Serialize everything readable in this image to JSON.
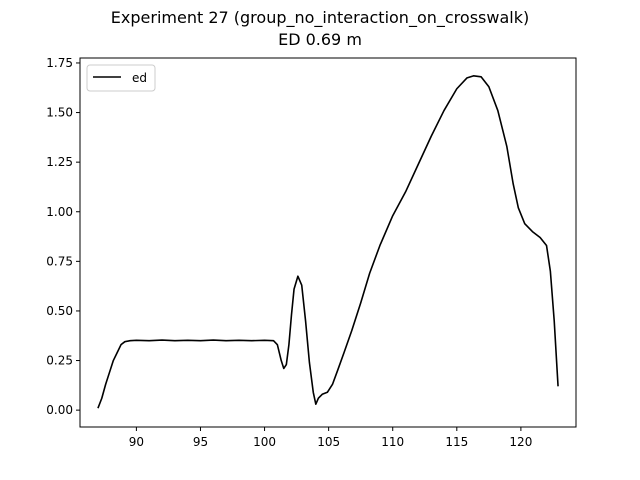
{
  "chart_data": {
    "type": "line",
    "title": "Experiment 27 (group_no_interaction_on_crosswalk)",
    "subtitle": "ED 0.69 m",
    "xlabel": "",
    "ylabel": "",
    "xlim": [
      85.6,
      124.3
    ],
    "ylim": [
      -0.085,
      1.775
    ],
    "xticks": [
      90,
      95,
      100,
      105,
      110,
      115,
      120
    ],
    "xtick_labels": [
      "90",
      "95",
      "100",
      "105",
      "110",
      "115",
      "120"
    ],
    "yticks": [
      0.0,
      0.25,
      0.5,
      0.75,
      1.0,
      1.25,
      1.5,
      1.75
    ],
    "ytick_labels": [
      "0.00",
      "0.25",
      "0.50",
      "0.75",
      "1.00",
      "1.25",
      "1.50",
      "1.75"
    ],
    "grid": false,
    "legend": {
      "position": "top-left",
      "entries": [
        "ed"
      ]
    },
    "series": [
      {
        "name": "ed",
        "color": "#000000",
        "points": [
          [
            87.0,
            0.01
          ],
          [
            87.3,
            0.06
          ],
          [
            87.6,
            0.13
          ],
          [
            87.9,
            0.19
          ],
          [
            88.2,
            0.25
          ],
          [
            88.5,
            0.29
          ],
          [
            88.8,
            0.33
          ],
          [
            89.1,
            0.345
          ],
          [
            89.5,
            0.35
          ],
          [
            90.0,
            0.352
          ],
          [
            91.0,
            0.35
          ],
          [
            92.0,
            0.353
          ],
          [
            93.0,
            0.35
          ],
          [
            94.0,
            0.352
          ],
          [
            95.0,
            0.35
          ],
          [
            96.0,
            0.353
          ],
          [
            97.0,
            0.35
          ],
          [
            98.0,
            0.352
          ],
          [
            99.0,
            0.35
          ],
          [
            100.0,
            0.352
          ],
          [
            100.7,
            0.35
          ],
          [
            101.0,
            0.33
          ],
          [
            101.3,
            0.25
          ],
          [
            101.5,
            0.21
          ],
          [
            101.7,
            0.23
          ],
          [
            101.9,
            0.33
          ],
          [
            102.1,
            0.48
          ],
          [
            102.3,
            0.61
          ],
          [
            102.6,
            0.675
          ],
          [
            102.9,
            0.63
          ],
          [
            103.2,
            0.45
          ],
          [
            103.5,
            0.24
          ],
          [
            103.8,
            0.09
          ],
          [
            104.0,
            0.03
          ],
          [
            104.2,
            0.06
          ],
          [
            104.5,
            0.08
          ],
          [
            104.9,
            0.09
          ],
          [
            105.3,
            0.13
          ],
          [
            105.7,
            0.2
          ],
          [
            106.2,
            0.29
          ],
          [
            106.8,
            0.4
          ],
          [
            107.5,
            0.54
          ],
          [
            108.2,
            0.69
          ],
          [
            109.0,
            0.83
          ],
          [
            110.0,
            0.98
          ],
          [
            111.0,
            1.1
          ],
          [
            112.0,
            1.24
          ],
          [
            113.0,
            1.38
          ],
          [
            114.0,
            1.51
          ],
          [
            115.0,
            1.62
          ],
          [
            115.8,
            1.675
          ],
          [
            116.3,
            1.685
          ],
          [
            116.9,
            1.68
          ],
          [
            117.5,
            1.63
          ],
          [
            118.2,
            1.51
          ],
          [
            118.9,
            1.33
          ],
          [
            119.4,
            1.14
          ],
          [
            119.8,
            1.02
          ],
          [
            120.3,
            0.94
          ],
          [
            120.9,
            0.9
          ],
          [
            121.5,
            0.87
          ],
          [
            122.0,
            0.83
          ],
          [
            122.3,
            0.7
          ],
          [
            122.6,
            0.45
          ],
          [
            122.9,
            0.12
          ]
        ]
      }
    ]
  }
}
